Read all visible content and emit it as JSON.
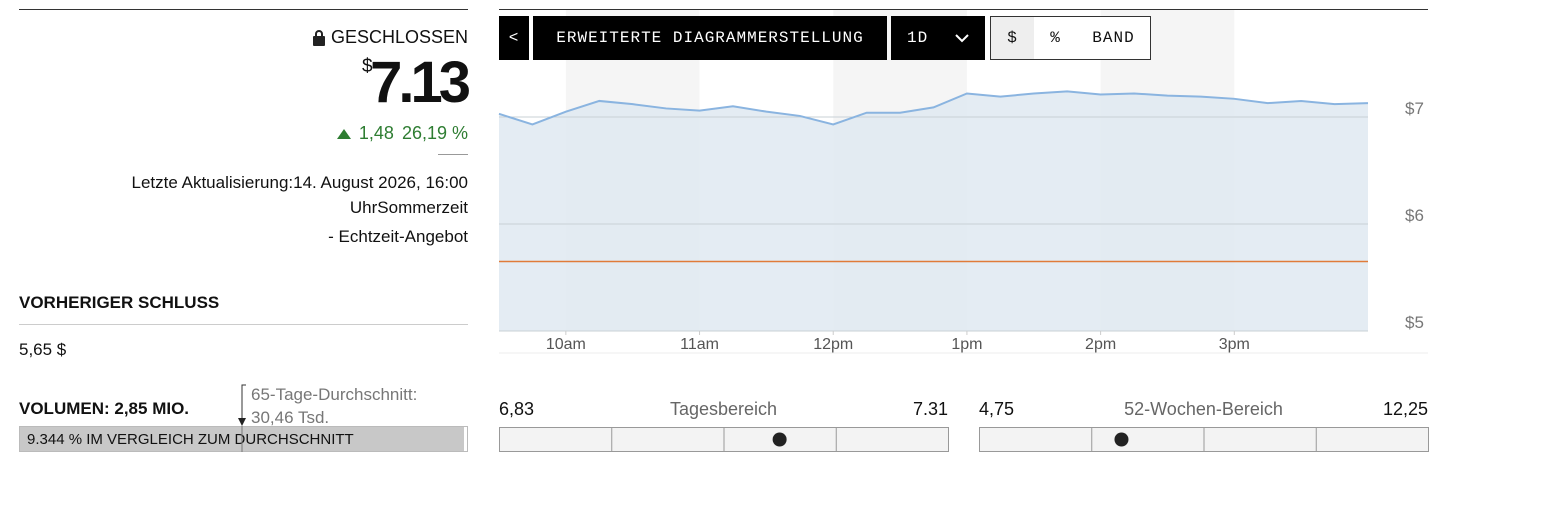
{
  "quote": {
    "status": "GESCHLOSSEN",
    "currency": "$",
    "price": 7.13,
    "change": "1,48",
    "change_pct": "26,19 %",
    "updated": "Letzte Aktualisierung:14. August 2026, 16:00 UhrSommerzeit",
    "realtime": "- Echtzeit-Angebot"
  },
  "previous_close": {
    "label": "VORHERIGER SCHLUSS",
    "value": 5.65,
    "value_label": "5,65 $"
  },
  "volume": {
    "label": "VOLUMEN: 2,85 MIO.",
    "avg_label": "65-Tage-Durchschnitt: 30,46 Tsd.",
    "bar_text": "9.344 % IM VERGLEICH ZUM DURCHSCHNITT"
  },
  "toolbar": {
    "back": "<",
    "advanced": "ERWEITERTE DIAGRAMMERSTELLUNG",
    "range": "1D",
    "buttons": [
      "$",
      "%",
      "BAND"
    ]
  },
  "chart_data": {
    "type": "line",
    "color": "#8ab4e0",
    "area_color": "#dfe9f1",
    "reference_color": "#e07b39",
    "x": [
      9.5,
      9.75,
      10,
      10.25,
      10.5,
      10.75,
      11,
      11.25,
      11.5,
      11.75,
      12,
      12.25,
      12.5,
      12.75,
      13,
      13.25,
      13.5,
      13.75,
      14,
      14.25,
      14.5,
      14.75,
      15,
      15.25,
      15.5,
      15.75,
      16
    ],
    "values": [
      7.03,
      6.93,
      7.05,
      7.15,
      7.12,
      7.08,
      7.06,
      7.1,
      7.05,
      7.01,
      6.93,
      7.04,
      7.04,
      7.09,
      7.22,
      7.19,
      7.22,
      7.24,
      7.21,
      7.22,
      7.2,
      7.19,
      7.17,
      7.13,
      7.15,
      7.12,
      7.13
    ],
    "xlim": [
      9.5,
      16
    ],
    "xticks": [
      {
        "value": 10,
        "label": "10am"
      },
      {
        "value": 11,
        "label": "11am"
      },
      {
        "value": 12,
        "label": "12pm"
      },
      {
        "value": 13,
        "label": "1pm"
      },
      {
        "value": 14,
        "label": "2pm"
      },
      {
        "value": 15,
        "label": "3pm"
      }
    ],
    "ylim": [
      5,
      8
    ],
    "yticks": [
      {
        "value": 5,
        "label": "$5"
      },
      {
        "value": 6,
        "label": "$6"
      },
      {
        "value": 7,
        "label": "$7"
      }
    ],
    "grid": true
  },
  "day_range": {
    "label": "Tagesbereich",
    "low": {
      "value": 6.83,
      "label": "6,83"
    },
    "high": 7.31
  },
  "week52_range": {
    "label": "52-Wochen-Bereich",
    "low": {
      "value": 4.75,
      "label": "4,75"
    },
    "high": {
      "value": 12.25,
      "label": "12,25"
    }
  }
}
